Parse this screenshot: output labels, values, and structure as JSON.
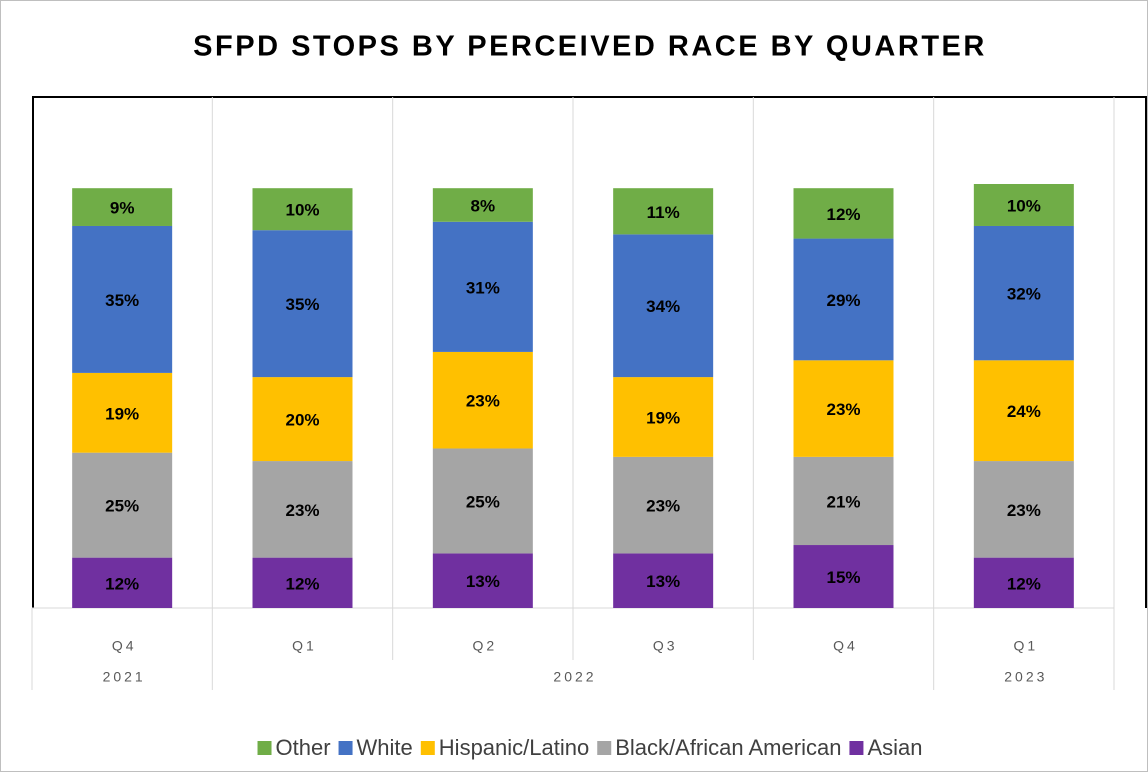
{
  "chart_data": {
    "type": "stacked_bar",
    "title": "SFPD STOPS BY PERCEIVED RACE BY QUARTER",
    "categories": [
      "Q4",
      "Q1",
      "Q2",
      "Q3",
      "Q4",
      "Q1"
    ],
    "x_groups": [
      {
        "label": "2021",
        "count": 1
      },
      {
        "label": "2022",
        "count": 4
      },
      {
        "label": "2023",
        "count": 1
      }
    ],
    "series": [
      {
        "name": "Other",
        "color": "#70ad47",
        "values": [
          9,
          10,
          8,
          11,
          12,
          10
        ],
        "value_labels": [
          "9%",
          "10%",
          "8%",
          "11%",
          "12%",
          "10%"
        ]
      },
      {
        "name": "White",
        "color": "#4472c4",
        "values": [
          35,
          35,
          31,
          34,
          29,
          32
        ],
        "value_labels": [
          "35%",
          "35%",
          "31%",
          "34%",
          "29%",
          "32%"
        ]
      },
      {
        "name": "Hispanic/Latino",
        "color": "#ffc000",
        "values": [
          19,
          20,
          23,
          19,
          23,
          24
        ],
        "value_labels": [
          "19%",
          "20%",
          "23%",
          "19%",
          "23%",
          "24%"
        ]
      },
      {
        "name": "Black/African American",
        "color": "#a5a5a5",
        "values": [
          25,
          23,
          25,
          23,
          21,
          23
        ],
        "value_labels": [
          "25%",
          "23%",
          "25%",
          "23%",
          "21%",
          "23%"
        ]
      },
      {
        "name": "Asian",
        "color": "#7030a0",
        "values": [
          12,
          12,
          13,
          13,
          15,
          12
        ],
        "value_labels": [
          "12%",
          "12%",
          "13%",
          "13%",
          "15%",
          "12%"
        ]
      }
    ],
    "legend": "bottom"
  }
}
